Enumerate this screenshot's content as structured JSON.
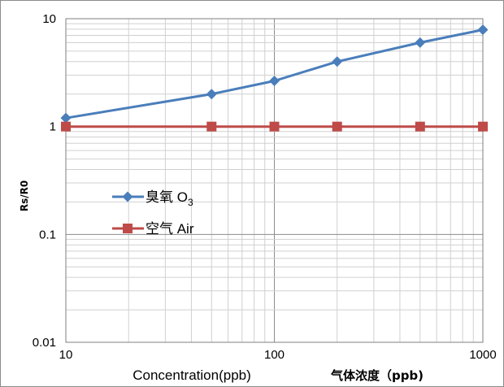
{
  "chart_data": {
    "type": "line",
    "x_scale": "log",
    "y_scale": "log",
    "xlim": [
      10,
      1000
    ],
    "ylim": [
      0.01,
      10
    ],
    "grid": true,
    "legend_position": "left-middle",
    "x_ticks": [
      "10",
      "100",
      "1000"
    ],
    "y_ticks": [
      "10",
      "1",
      "0.1",
      "0.01"
    ],
    "xlabel": "Concentration(ppb)",
    "xlabel_cn": "气体浓度（ppb)",
    "ylabel": "Rs/R0",
    "series": [
      {
        "name": "臭氧 O3",
        "name_main": "臭氧 O",
        "name_sub": "3",
        "color": "#4a7ebb",
        "marker": "diamond",
        "x": [
          10,
          50,
          100,
          200,
          500,
          1000
        ],
        "y": [
          1.2,
          2.0,
          2.65,
          4.0,
          6.0,
          7.9
        ]
      },
      {
        "name": "空气 Air",
        "color": "#be4b48",
        "marker": "square",
        "x": [
          10,
          50,
          100,
          200,
          500,
          1000
        ],
        "y": [
          1,
          1,
          1,
          1,
          1,
          1
        ]
      }
    ]
  }
}
